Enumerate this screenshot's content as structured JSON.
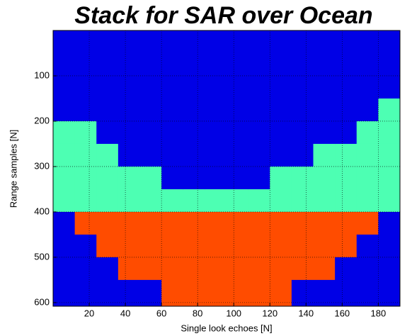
{
  "chart_data": {
    "type": "heatmap",
    "title": "Stack for SAR over Ocean",
    "xlabel": "Single look echoes [N]",
    "ylabel": "Range samples [N]",
    "colormap": "jet",
    "clim": [
      0,
      1
    ],
    "x": [
      6,
      18,
      30,
      42,
      54,
      66,
      78,
      90,
      102,
      114,
      126,
      138,
      150,
      162,
      174,
      186
    ],
    "y": [
      25,
      75,
      125,
      175,
      225,
      275,
      325,
      375,
      425,
      475,
      525,
      575
    ],
    "z": [
      [
        0.1,
        0.1,
        0.1,
        0.1,
        0.45,
        0.45,
        0.45,
        0.45,
        0.1,
        0.1,
        0.1,
        0.1
      ],
      [
        0.1,
        0.1,
        0.1,
        0.1,
        0.45,
        0.45,
        0.45,
        0.45,
        0.8,
        0.1,
        0.1,
        0.1
      ],
      [
        0.1,
        0.1,
        0.1,
        0.1,
        0.1,
        0.45,
        0.45,
        0.45,
        0.8,
        0.8,
        0.1,
        0.1
      ],
      [
        0.1,
        0.1,
        0.1,
        0.1,
        0.1,
        0.1,
        0.45,
        0.45,
        0.8,
        0.8,
        0.8,
        0.1
      ],
      [
        0.1,
        0.1,
        0.1,
        0.1,
        0.1,
        0.1,
        0.45,
        0.45,
        0.8,
        0.8,
        0.8,
        0.1
      ],
      [
        0.1,
        0.1,
        0.1,
        0.1,
        0.1,
        0.1,
        0.1,
        0.45,
        0.8,
        0.8,
        0.8,
        0.8
      ],
      [
        0.1,
        0.1,
        0.1,
        0.1,
        0.1,
        0.1,
        0.1,
        0.45,
        0.8,
        0.8,
        0.8,
        0.8
      ],
      [
        0.1,
        0.1,
        0.1,
        0.1,
        0.1,
        0.1,
        0.1,
        0.45,
        0.8,
        0.8,
        0.8,
        0.8
      ],
      [
        0.1,
        0.1,
        0.1,
        0.1,
        0.1,
        0.1,
        0.1,
        0.45,
        0.8,
        0.8,
        0.8,
        0.8
      ],
      [
        0.1,
        0.1,
        0.1,
        0.1,
        0.1,
        0.1,
        0.1,
        0.45,
        0.8,
        0.8,
        0.8,
        0.8
      ],
      [
        0.1,
        0.1,
        0.1,
        0.1,
        0.1,
        0.1,
        0.45,
        0.45,
        0.8,
        0.8,
        0.8,
        0.8
      ],
      [
        0.1,
        0.1,
        0.1,
        0.1,
        0.1,
        0.1,
        0.45,
        0.45,
        0.8,
        0.8,
        0.8,
        0.1
      ],
      [
        0.1,
        0.1,
        0.1,
        0.1,
        0.1,
        0.45,
        0.45,
        0.45,
        0.8,
        0.8,
        0.8,
        0.1
      ],
      [
        0.1,
        0.1,
        0.1,
        0.1,
        0.1,
        0.45,
        0.45,
        0.45,
        0.8,
        0.8,
        0.1,
        0.1
      ],
      [
        0.1,
        0.1,
        0.1,
        0.1,
        0.45,
        0.45,
        0.45,
        0.45,
        0.8,
        0.1,
        0.1,
        0.1
      ],
      [
        0.1,
        0.1,
        0.1,
        0.45,
        0.45,
        0.45,
        0.45,
        0.45,
        0.1,
        0.1,
        0.1,
        0.1
      ]
    ],
    "xlim": [
      0,
      192
    ],
    "ylim": [
      0,
      608
    ],
    "y_reversed": true,
    "xticks": [
      20,
      40,
      60,
      80,
      100,
      120,
      140,
      160,
      180
    ],
    "yticks": [
      100,
      200,
      300,
      400,
      500,
      600
    ],
    "grid": true
  }
}
